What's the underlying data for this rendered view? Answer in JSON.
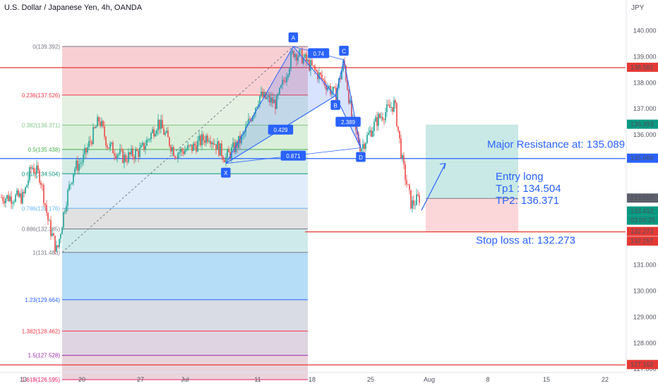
{
  "header": {
    "title": "U.S. Dollar / Japanese Yen, 4h, OANDA",
    "currency": "JPY"
  },
  "colors": {
    "up": "#26a69a",
    "down": "#ef5350",
    "pattern": "#2962ff",
    "resistance": "#2962ff",
    "support": "#e53935"
  },
  "chart_data": {
    "type": "candlestick",
    "symbol": "USDJPY",
    "timeframe": "4h",
    "ylim": [
      126.4,
      140.7
    ],
    "y_ticks": [
      127.0,
      128.0,
      129.0,
      130.0,
      131.0,
      136.0,
      137.0,
      138.0,
      139.0,
      140.0
    ],
    "x_ticks": [
      "13",
      "20",
      "27",
      "Jul",
      "11",
      "18",
      "25",
      "Aug",
      "8",
      "15",
      "22"
    ],
    "price_path": [
      {
        "date": "2022-06-13",
        "price": 133.6
      },
      {
        "date": "2022-06-14",
        "price": 134.8
      },
      {
        "date": "2022-06-15",
        "price": 134.4
      },
      {
        "date": "2022-06-16",
        "price": 132.6
      },
      {
        "date": "2022-06-17",
        "price": 131.5
      },
      {
        "date": "2022-06-18",
        "price": 133.4
      },
      {
        "date": "2022-06-19",
        "price": 134.7
      },
      {
        "date": "2022-06-20",
        "price": 135.0
      },
      {
        "date": "2022-06-22",
        "price": 136.6
      },
      {
        "date": "2022-06-23",
        "price": 135.6
      },
      {
        "date": "2022-06-25",
        "price": 135.1
      },
      {
        "date": "2022-06-27",
        "price": 135.4
      },
      {
        "date": "2022-06-29",
        "price": 136.5
      },
      {
        "date": "2022-07-01",
        "price": 135.3
      },
      {
        "date": "2022-07-03",
        "price": 135.5
      },
      {
        "date": "2022-07-05",
        "price": 136.0
      },
      {
        "date": "2022-07-07",
        "price": 135.1
      },
      {
        "date": "2022-07-09",
        "price": 135.9
      },
      {
        "date": "2022-07-11",
        "price": 137.5
      },
      {
        "date": "2022-07-13",
        "price": 137.2
      },
      {
        "date": "2022-07-15",
        "price": 139.2
      },
      {
        "date": "2022-07-16",
        "price": 139.0
      },
      {
        "date": "2022-07-18",
        "price": 138.3
      },
      {
        "date": "2022-07-20",
        "price": 137.5
      },
      {
        "date": "2022-07-21",
        "price": 138.8
      },
      {
        "date": "2022-07-22",
        "price": 136.5
      },
      {
        "date": "2022-07-23",
        "price": 135.5
      },
      {
        "date": "2022-07-25",
        "price": 136.6
      },
      {
        "date": "2022-07-27",
        "price": 137.2
      },
      {
        "date": "2022-07-28",
        "price": 134.8
      },
      {
        "date": "2022-07-29",
        "price": 133.3
      },
      {
        "date": "2022-07-30",
        "price": 133.6
      }
    ],
    "fib_retracement": {
      "levels": [
        {
          "label": "0(139.392)",
          "price": 139.392,
          "color": "#787b86"
        },
        {
          "label": "0.236(137.526)",
          "price": 137.526,
          "color": "#f23645"
        },
        {
          "label": "0.382(136.371)",
          "price": 136.371,
          "color": "#81c784"
        },
        {
          "label": "0.5(135.438)",
          "price": 135.438,
          "color": "#4caf50"
        },
        {
          "label": "0.618(134.504)",
          "price": 134.504,
          "color": "#089981"
        },
        {
          "label": "0.786(133.176)",
          "price": 133.176,
          "color": "#64b5f6"
        },
        {
          "label": "0.886(132.385)",
          "price": 132.385,
          "color": "#787b86"
        },
        {
          "label": "1(131.483)",
          "price": 131.483,
          "color": "#787b86"
        },
        {
          "label": "1.23(129.664)",
          "price": 129.664,
          "color": "#2962ff"
        },
        {
          "label": "1.382(128.462)",
          "price": 128.462,
          "color": "#f23645"
        },
        {
          "label": "1.5(127.528)",
          "price": 127.528,
          "color": "#9c27b0"
        },
        {
          "label": "1.618(126.595)",
          "price": 126.595,
          "color": "#e91e63"
        }
      ],
      "zone_colors": [
        "#f7c8cc",
        "#dfeedd",
        "#d3ecd4",
        "#cde9dd",
        "#dbe9f8",
        "#dcdcdc",
        "#c7e6e8",
        "#a9d7f6",
        "#d2d6e0",
        "#d9ccdc",
        "#e6ccd6"
      ]
    },
    "harmonic_pattern": {
      "points": [
        {
          "label": "X",
          "date": "2022-07-07",
          "price": 134.9
        },
        {
          "label": "A",
          "date": "2022-07-15",
          "price": 139.39
        },
        {
          "label": "B",
          "date": "2022-07-20",
          "price": 137.5
        },
        {
          "label": "C",
          "date": "2022-07-21",
          "price": 138.88
        },
        {
          "label": "D",
          "date": "2022-07-23",
          "price": 135.5
        }
      ],
      "ratios": [
        "0.74",
        "0.429",
        "2.389",
        "0.871"
      ]
    },
    "horizontal_lines": [
      {
        "name": "resistance",
        "price": 135.089,
        "color": "#2962ff"
      },
      {
        "name": "upper",
        "price": 138.581,
        "color": "#e53935"
      },
      {
        "name": "stop",
        "price": 132.273,
        "color": "#e53935"
      },
      {
        "name": "bottom",
        "price": 127.162,
        "color": "#e53935"
      }
    ],
    "position": {
      "entry": 133.557,
      "stop": 132.273,
      "target": 136.393
    },
    "annotations": {
      "resistance": "Major Resistance at: 135.089",
      "entry_line1": "Entry long",
      "entry_line2": "Tp1 : 134.504",
      "entry_line3": "TP2: 136.371",
      "stop": "Stop loss at: 132.273"
    },
    "price_labels": [
      {
        "text": "138.581",
        "price": 138.581,
        "bg": "#e53935"
      },
      {
        "text": "136.393",
        "price": 136.393,
        "bg": "#089981"
      },
      {
        "text": "135.089",
        "price": 135.089,
        "bg": "#2962ff"
      },
      {
        "text": "133.557",
        "price": 133.557,
        "bg": "#5d606b"
      },
      {
        "text": "133.412",
        "price": 133.412,
        "bg": "#089981"
      },
      {
        "text": "03:00:25",
        "price": 133.412,
        "bg": "#089981"
      },
      {
        "text": "132.273",
        "price": 132.273,
        "bg": "#e53935"
      },
      {
        "text": "132.257",
        "price": 132.257,
        "bg": "#e53935"
      },
      {
        "text": "127.162",
        "price": 127.162,
        "bg": "#e53935"
      }
    ]
  }
}
